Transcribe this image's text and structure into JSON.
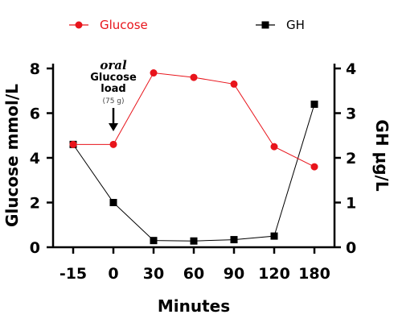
{
  "chart_data": {
    "type": "line",
    "categories": [
      "-15",
      "0",
      "30",
      "60",
      "90",
      "120",
      "180"
    ],
    "xlabel": "Minutes",
    "ylabel_left": "Glucose mmol/L",
    "ylabel_right": "GH μg/L",
    "ylim_left": [
      0,
      8
    ],
    "ylim_right": [
      0,
      4
    ],
    "yticks_left": [
      "0",
      "2",
      "4",
      "6",
      "8"
    ],
    "yticks_right": [
      "0",
      "1",
      "2",
      "3",
      "4"
    ],
    "legend_position": "top",
    "grid": false,
    "series": [
      {
        "name": "Glucose",
        "axis": "left",
        "color": "#e8141b",
        "marker": "circle",
        "values": [
          4.6,
          4.6,
          7.8,
          7.6,
          7.3,
          4.5,
          3.6
        ]
      },
      {
        "name": "GH",
        "axis": "right",
        "color": "#000000",
        "marker": "square",
        "values": [
          2.3,
          1.0,
          0.15,
          0.14,
          0.17,
          0.25,
          3.2
        ]
      }
    ],
    "annotation": {
      "line1": "oral",
      "line2": "Glucose",
      "line3": "load",
      "line4": "(75 g)",
      "at_category": "0"
    }
  }
}
